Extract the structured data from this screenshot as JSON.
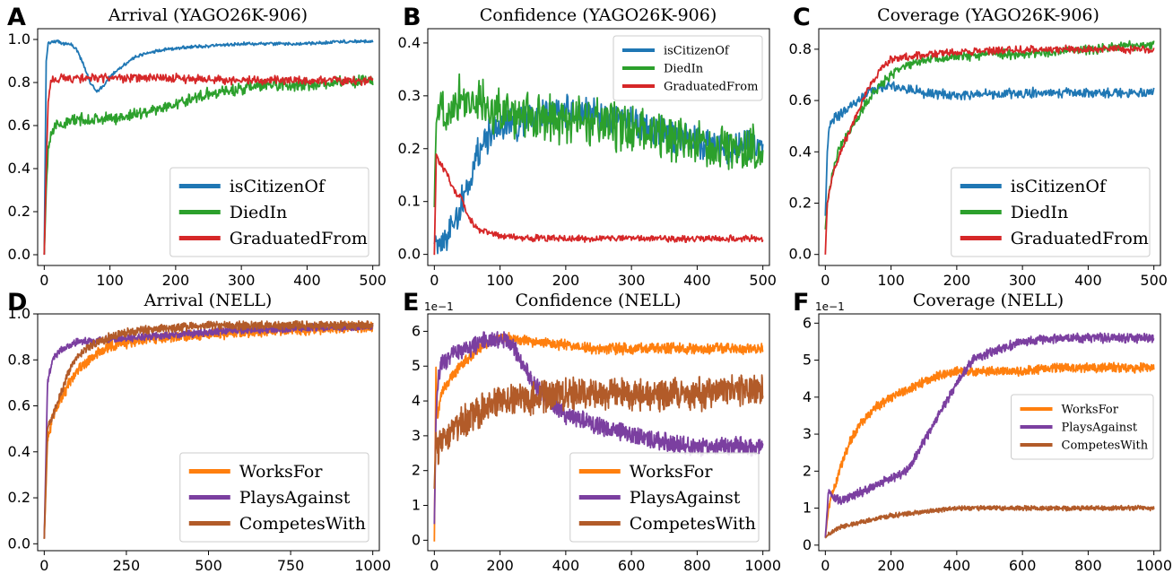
{
  "chart_data": [
    {
      "panel": "A",
      "type": "line",
      "title": "Arrival (YAGO26K-906)",
      "xlim": [
        -10,
        510
      ],
      "ylim": [
        -0.05,
        1.05
      ],
      "xticks": [
        0,
        100,
        200,
        300,
        400,
        500
      ],
      "yticks": [
        0.0,
        0.2,
        0.4,
        0.6,
        0.8,
        1.0
      ],
      "ytick_labels": [
        "0.0",
        "0.2",
        "0.4",
        "0.6",
        "0.8",
        "1.0"
      ],
      "y_offset_label": "",
      "legend": {
        "position": "lower-right",
        "size": "large"
      },
      "series": [
        {
          "name": "isCitizenOf",
          "color": "#1f77b4",
          "noise": 0.006,
          "x": [
            0,
            3,
            6,
            10,
            20,
            30,
            40,
            50,
            60,
            70,
            80,
            90,
            100,
            120,
            140,
            160,
            200,
            250,
            300,
            350,
            400,
            450,
            500
          ],
          "y": [
            0.0,
            0.9,
            0.98,
            0.99,
            0.99,
            0.98,
            0.98,
            0.95,
            0.88,
            0.8,
            0.76,
            0.78,
            0.83,
            0.88,
            0.92,
            0.94,
            0.96,
            0.97,
            0.98,
            0.98,
            0.98,
            0.99,
            0.99
          ]
        },
        {
          "name": "DiedIn",
          "color": "#2ca02c",
          "noise": 0.022,
          "x": [
            0,
            3,
            6,
            10,
            20,
            40,
            60,
            100,
            150,
            200,
            250,
            300,
            350,
            400,
            450,
            500
          ],
          "y": [
            0.0,
            0.3,
            0.5,
            0.57,
            0.6,
            0.62,
            0.63,
            0.63,
            0.66,
            0.7,
            0.75,
            0.77,
            0.79,
            0.79,
            0.8,
            0.81
          ]
        },
        {
          "name": "GraduatedFrom",
          "color": "#d62728",
          "noise": 0.016,
          "x": [
            0,
            3,
            6,
            10,
            20,
            50,
            100,
            200,
            300,
            400,
            500
          ],
          "y": [
            0.0,
            0.4,
            0.7,
            0.81,
            0.82,
            0.82,
            0.82,
            0.82,
            0.81,
            0.81,
            0.81
          ]
        }
      ]
    },
    {
      "panel": "B",
      "type": "line",
      "title": "Confidence (YAGO26K-906)",
      "xlim": [
        -10,
        510
      ],
      "ylim": [
        -0.021,
        0.427
      ],
      "xticks": [
        0,
        100,
        200,
        300,
        400,
        500
      ],
      "yticks": [
        0.0,
        0.1,
        0.2,
        0.3,
        0.4
      ],
      "ytick_labels": [
        "0.0",
        "0.1",
        "0.2",
        "0.3",
        "0.4"
      ],
      "y_offset_label": "",
      "legend": {
        "position": "upper-right",
        "size": "small"
      },
      "series": [
        {
          "name": "isCitizenOf",
          "color": "#1f77b4",
          "noise": 0.025,
          "x": [
            0,
            5,
            10,
            20,
            30,
            40,
            50,
            60,
            70,
            80,
            100,
            150,
            200,
            250,
            300,
            350,
            400,
            450,
            500
          ],
          "y": [
            0.03,
            0.02,
            0.03,
            0.04,
            0.06,
            0.09,
            0.13,
            0.17,
            0.2,
            0.22,
            0.24,
            0.26,
            0.27,
            0.26,
            0.25,
            0.23,
            0.21,
            0.2,
            0.2
          ]
        },
        {
          "name": "DiedIn",
          "color": "#2ca02c",
          "noise": 0.035,
          "x": [
            0,
            3,
            10,
            20,
            40,
            60,
            100,
            150,
            200,
            250,
            300,
            350,
            400,
            450,
            500
          ],
          "y": [
            0.1,
            0.25,
            0.27,
            0.28,
            0.3,
            0.29,
            0.27,
            0.26,
            0.25,
            0.25,
            0.24,
            0.22,
            0.21,
            0.2,
            0.2
          ]
        },
        {
          "name": "GraduatedFrom",
          "color": "#d62728",
          "noise": 0.005,
          "x": [
            0,
            3,
            6,
            10,
            20,
            30,
            40,
            50,
            60,
            70,
            100,
            150,
            200,
            300,
            400,
            500
          ],
          "y": [
            0.0,
            0.19,
            0.18,
            0.17,
            0.15,
            0.12,
            0.11,
            0.075,
            0.055,
            0.045,
            0.035,
            0.03,
            0.03,
            0.03,
            0.03,
            0.03
          ]
        }
      ]
    },
    {
      "panel": "C",
      "type": "line",
      "title": "Coverage (YAGO26K-906)",
      "xlim": [
        -10,
        510
      ],
      "ylim": [
        -0.043,
        0.88
      ],
      "xticks": [
        0,
        100,
        200,
        300,
        400,
        500
      ],
      "yticks": [
        0.0,
        0.2,
        0.4,
        0.6,
        0.8
      ],
      "ytick_labels": [
        "0.0",
        "0.2",
        "0.4",
        "0.6",
        "0.8"
      ],
      "y_offset_label": "",
      "legend": {
        "position": "lower-right",
        "size": "large"
      },
      "series": [
        {
          "name": "isCitizenOf",
          "color": "#1f77b4",
          "noise": 0.015,
          "x": [
            0,
            3,
            6,
            10,
            20,
            30,
            40,
            60,
            80,
            100,
            150,
            200,
            300,
            400,
            500
          ],
          "y": [
            0.15,
            0.4,
            0.5,
            0.52,
            0.54,
            0.56,
            0.58,
            0.62,
            0.65,
            0.66,
            0.63,
            0.62,
            0.63,
            0.63,
            0.63
          ]
        },
        {
          "name": "DiedIn",
          "color": "#2ca02c",
          "noise": 0.015,
          "x": [
            0,
            3,
            10,
            20,
            40,
            60,
            80,
            100,
            120,
            150,
            200,
            250,
            300,
            350,
            400,
            450,
            500
          ],
          "y": [
            0.1,
            0.2,
            0.3,
            0.4,
            0.5,
            0.58,
            0.65,
            0.7,
            0.73,
            0.76,
            0.77,
            0.78,
            0.78,
            0.79,
            0.8,
            0.81,
            0.82
          ]
        },
        {
          "name": "GraduatedFrom",
          "color": "#d62728",
          "noise": 0.012,
          "x": [
            0,
            3,
            10,
            20,
            40,
            60,
            80,
            100,
            150,
            200,
            300,
            400,
            500
          ],
          "y": [
            0.0,
            0.2,
            0.3,
            0.38,
            0.5,
            0.62,
            0.71,
            0.76,
            0.78,
            0.79,
            0.8,
            0.8,
            0.8
          ]
        }
      ]
    },
    {
      "panel": "D",
      "type": "line",
      "title": "Arrival (NELL)",
      "xlim": [
        -20,
        1020
      ],
      "ylim": [
        -0.03,
        1.0
      ],
      "xticks": [
        0,
        250,
        500,
        750,
        1000
      ],
      "yticks": [
        0.0,
        0.2,
        0.4,
        0.6,
        0.8,
        1.0
      ],
      "ytick_labels": [
        "0.0",
        "0.2",
        "0.4",
        "0.6",
        "0.8",
        "1.0"
      ],
      "y_offset_label": "",
      "legend": {
        "position": "lower-right",
        "size": "large"
      },
      "series": [
        {
          "name": "WorksFor",
          "color": "#ff7f0e",
          "noise": 0.018,
          "x": [
            0,
            10,
            25,
            50,
            75,
            100,
            150,
            200,
            300,
            400,
            500,
            600,
            700,
            800,
            900,
            1000
          ],
          "y": [
            0.02,
            0.45,
            0.55,
            0.62,
            0.7,
            0.75,
            0.82,
            0.86,
            0.89,
            0.9,
            0.91,
            0.92,
            0.93,
            0.93,
            0.94,
            0.94
          ]
        },
        {
          "name": "PlaysAgainst",
          "color": "#7b3fa0",
          "noise": 0.012,
          "x": [
            0,
            10,
            25,
            50,
            100,
            200,
            300,
            400,
            500,
            600,
            700,
            800,
            900,
            1000
          ],
          "y": [
            0.02,
            0.7,
            0.8,
            0.84,
            0.88,
            0.89,
            0.9,
            0.91,
            0.92,
            0.93,
            0.93,
            0.94,
            0.94,
            0.94
          ]
        },
        {
          "name": "CompetesWith",
          "color": "#b25b29",
          "noise": 0.014,
          "x": [
            0,
            10,
            25,
            50,
            75,
            100,
            150,
            200,
            250,
            300,
            400,
            500,
            600,
            700,
            800,
            900,
            1000
          ],
          "y": [
            0.02,
            0.5,
            0.55,
            0.65,
            0.75,
            0.82,
            0.87,
            0.9,
            0.92,
            0.93,
            0.94,
            0.95,
            0.95,
            0.95,
            0.95,
            0.95,
            0.95
          ]
        }
      ]
    },
    {
      "panel": "E",
      "type": "line",
      "title": "Confidence (NELL)",
      "xlim": [
        -20,
        1020
      ],
      "ylim": [
        -0.03,
        0.65
      ],
      "xticks": [
        0,
        200,
        400,
        600,
        800,
        1000
      ],
      "yticks": [
        0.0,
        0.1,
        0.2,
        0.3,
        0.4,
        0.5,
        0.6
      ],
      "ytick_labels": [
        "0",
        "1",
        "2",
        "3",
        "4",
        "5",
        "6"
      ],
      "y_offset_label": "1e−1",
      "legend": {
        "position": "lower-right",
        "size": "large"
      },
      "series": [
        {
          "name": "WorksFor",
          "color": "#ff7f0e",
          "noise": 0.012,
          "x": [
            0,
            5,
            10,
            20,
            40,
            60,
            80,
            100,
            150,
            200,
            250,
            300,
            400,
            500,
            600,
            700,
            800,
            900,
            1000
          ],
          "y": [
            0.0,
            0.5,
            0.35,
            0.42,
            0.45,
            0.48,
            0.5,
            0.52,
            0.56,
            0.58,
            0.58,
            0.57,
            0.56,
            0.55,
            0.55,
            0.55,
            0.55,
            0.55,
            0.55
          ]
        },
        {
          "name": "PlaysAgainst",
          "color": "#7b3fa0",
          "noise": 0.02,
          "x": [
            0,
            5,
            10,
            20,
            40,
            60,
            100,
            150,
            200,
            230,
            260,
            300,
            350,
            400,
            500,
            600,
            700,
            800,
            900,
            1000
          ],
          "y": [
            0.05,
            0.35,
            0.45,
            0.5,
            0.52,
            0.54,
            0.55,
            0.57,
            0.58,
            0.57,
            0.52,
            0.45,
            0.4,
            0.36,
            0.33,
            0.3,
            0.28,
            0.27,
            0.27,
            0.27
          ]
        },
        {
          "name": "CompetesWith",
          "color": "#b25b29",
          "noise": 0.035,
          "x": [
            0,
            5,
            10,
            20,
            40,
            60,
            100,
            150,
            200,
            300,
            400,
            500,
            600,
            700,
            800,
            900,
            1000
          ],
          "y": [
            0.15,
            0.3,
            0.25,
            0.28,
            0.3,
            0.32,
            0.35,
            0.38,
            0.4,
            0.41,
            0.42,
            0.42,
            0.42,
            0.42,
            0.42,
            0.43,
            0.43
          ]
        }
      ]
    },
    {
      "panel": "F",
      "type": "line",
      "title": "Coverage (NELL)",
      "xlim": [
        -20,
        1020
      ],
      "ylim": [
        -0.015,
        0.625
      ],
      "xticks": [
        0,
        200,
        400,
        600,
        800,
        1000
      ],
      "yticks": [
        0.0,
        0.1,
        0.2,
        0.3,
        0.4,
        0.5,
        0.6
      ],
      "ytick_labels": [
        "0",
        "1",
        "2",
        "3",
        "4",
        "5",
        "6"
      ],
      "y_offset_label": "1e−1",
      "legend": {
        "position": "center-right",
        "size": "small"
      },
      "series": [
        {
          "name": "WorksFor",
          "color": "#ff7f0e",
          "noise": 0.01,
          "x": [
            0,
            10,
            25,
            50,
            75,
            100,
            150,
            200,
            250,
            300,
            350,
            400,
            500,
            600,
            700,
            800,
            900,
            1000
          ],
          "y": [
            0.02,
            0.1,
            0.15,
            0.22,
            0.28,
            0.32,
            0.37,
            0.4,
            0.42,
            0.44,
            0.46,
            0.47,
            0.47,
            0.47,
            0.48,
            0.48,
            0.48,
            0.48
          ]
        },
        {
          "name": "PlaysAgainst",
          "color": "#7b3fa0",
          "noise": 0.01,
          "x": [
            0,
            10,
            25,
            50,
            100,
            150,
            200,
            250,
            300,
            350,
            400,
            450,
            500,
            600,
            700,
            800,
            900,
            1000
          ],
          "y": [
            0.02,
            0.15,
            0.13,
            0.12,
            0.14,
            0.16,
            0.18,
            0.2,
            0.28,
            0.36,
            0.44,
            0.5,
            0.52,
            0.55,
            0.56,
            0.56,
            0.56,
            0.56
          ]
        },
        {
          "name": "CompetesWith",
          "color": "#b25b29",
          "noise": 0.005,
          "x": [
            0,
            10,
            25,
            50,
            100,
            200,
            300,
            400,
            500,
            600,
            700,
            800,
            900,
            1000
          ],
          "y": [
            0.02,
            0.03,
            0.04,
            0.05,
            0.06,
            0.08,
            0.09,
            0.1,
            0.1,
            0.1,
            0.1,
            0.1,
            0.1,
            0.1
          ]
        }
      ]
    }
  ]
}
